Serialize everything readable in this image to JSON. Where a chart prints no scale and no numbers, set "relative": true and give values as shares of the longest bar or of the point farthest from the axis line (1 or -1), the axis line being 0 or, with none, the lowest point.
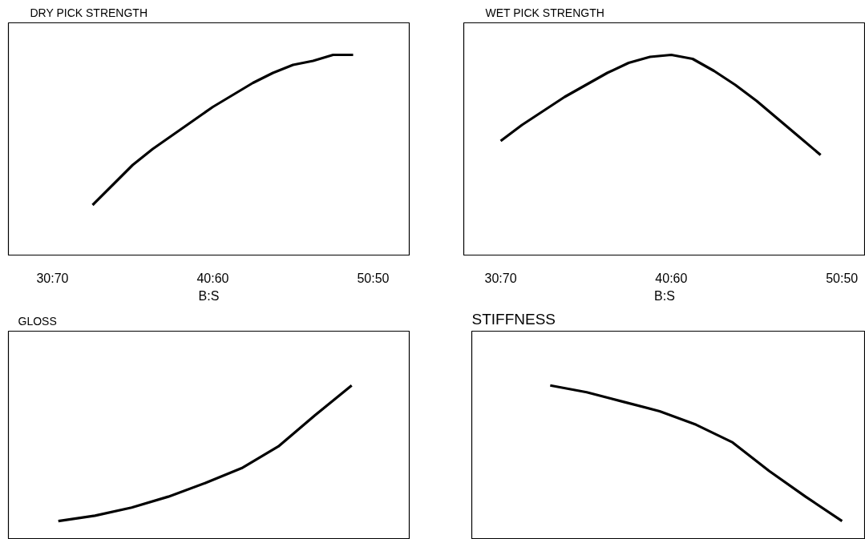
{
  "chart_data": [
    {
      "type": "line",
      "title": "DRY PICK STRENGTH",
      "xlabel": "B:S",
      "relative": true,
      "tick_labels": "x",
      "categories": [
        "30:70",
        null,
        null,
        null,
        null,
        null,
        null,
        null,
        "40:60",
        null,
        null,
        null,
        null,
        null,
        null,
        null,
        "50:50"
      ],
      "series": [
        {
          "color": "#000000",
          "values": [
            null,
            null,
            0.25,
            0.35,
            0.45,
            0.53,
            0.6,
            0.67,
            0.74,
            0.8,
            0.86,
            0.91,
            0.95,
            0.97,
            1,
            1,
            null
          ]
        }
      ]
    },
    {
      "type": "line",
      "title": "WET PICK STRENGTH",
      "xlabel": "B:S",
      "relative": true,
      "tick_labels": "x",
      "categories": [
        "30:70",
        null,
        null,
        null,
        null,
        null,
        null,
        null,
        "40:60",
        null,
        null,
        null,
        null,
        null,
        null,
        null,
        "50:50"
      ],
      "series": [
        {
          "color": "#000000",
          "values": [
            0.57,
            0.65,
            0.72,
            0.79,
            0.85,
            0.91,
            0.96,
            0.99,
            1,
            0.98,
            0.92,
            0.85,
            0.77,
            0.68,
            0.59,
            0.5,
            null
          ]
        }
      ]
    },
    {
      "type": "line",
      "title": "GLOSS",
      "relative": true,
      "tick_labels": false,
      "categories": [
        null,
        null,
        null,
        null,
        null,
        null,
        null,
        null,
        null
      ],
      "series": [
        {
          "color": "#000000",
          "values": [
            0,
            0.04,
            0.1,
            0.18,
            0.28,
            0.39,
            0.55,
            0.78,
            1
          ]
        }
      ]
    },
    {
      "type": "line",
      "title": "STIFFNESS",
      "relative": true,
      "tick_labels": false,
      "categories": [
        null,
        null,
        null,
        null,
        null,
        null,
        null,
        null,
        null
      ],
      "series": [
        {
          "color": "#000000",
          "values": [
            1,
            0.95,
            0.88,
            0.81,
            0.71,
            0.58,
            0.37,
            0.18,
            0
          ]
        }
      ]
    }
  ]
}
